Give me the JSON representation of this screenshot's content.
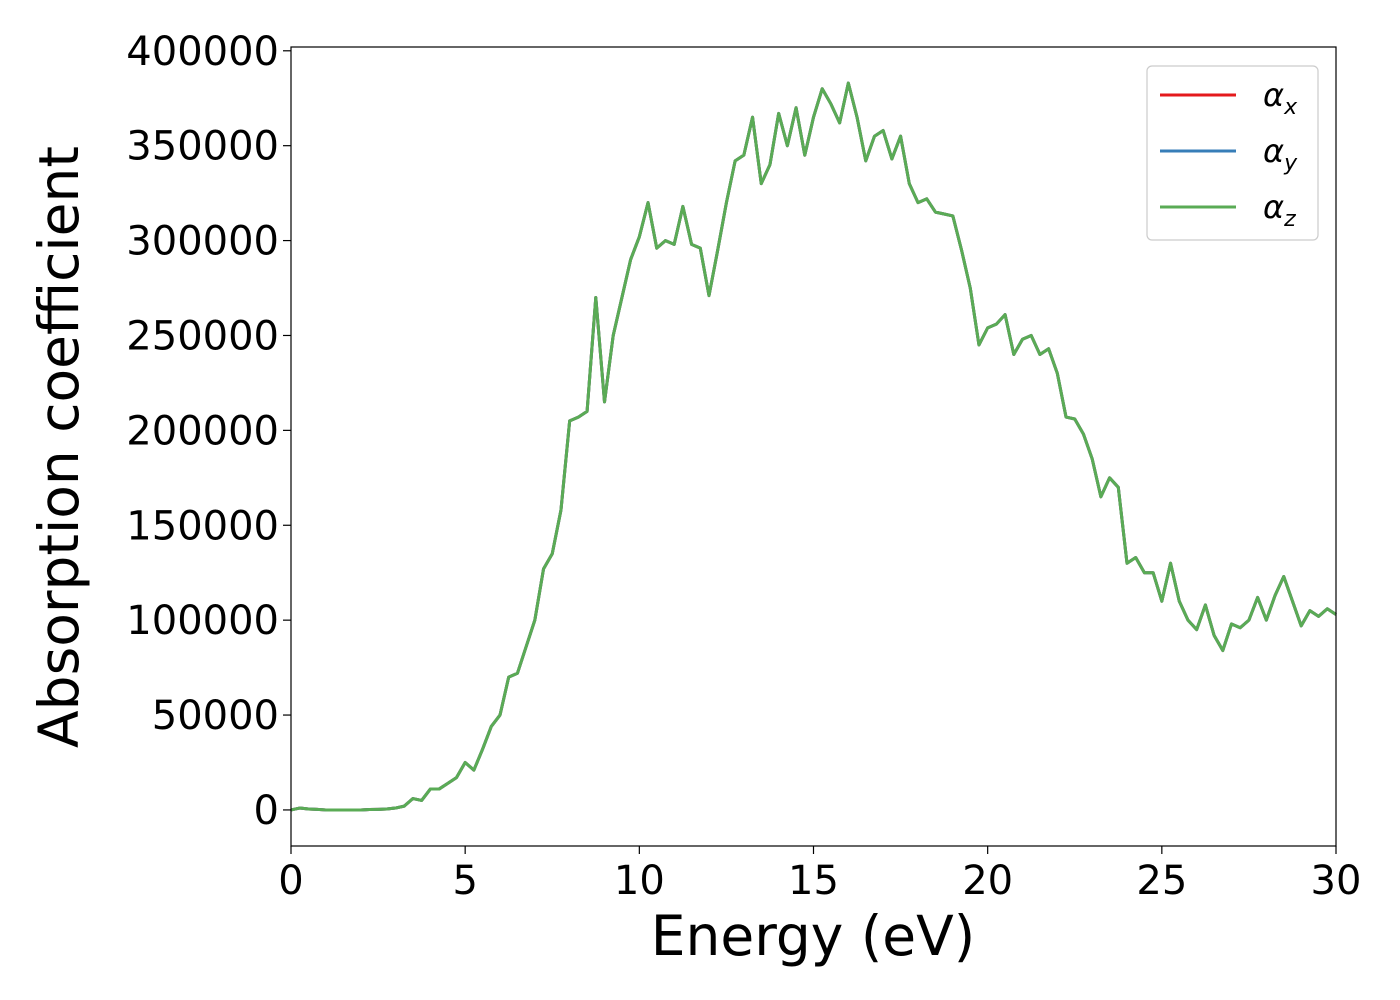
{
  "chart_data": {
    "type": "line",
    "xlabel": "Energy (eV)",
    "ylabel": "Absorption coefficient",
    "x": [
      0,
      0.25,
      0.5,
      0.75,
      1,
      1.25,
      1.5,
      1.75,
      2,
      2.25,
      2.5,
      2.75,
      3,
      3.25,
      3.5,
      3.75,
      4,
      4.25,
      4.5,
      4.75,
      5,
      5.25,
      5.5,
      5.75,
      6,
      6.25,
      6.5,
      6.75,
      7,
      7.25,
      7.5,
      7.75,
      8,
      8.25,
      8.5,
      8.75,
      9,
      9.25,
      9.5,
      9.75,
      10,
      10.25,
      10.5,
      10.75,
      11,
      11.25,
      11.5,
      11.75,
      12,
      12.25,
      12.5,
      12.75,
      13,
      13.25,
      13.5,
      13.75,
      14,
      14.25,
      14.5,
      14.75,
      15,
      15.25,
      15.5,
      15.75,
      16,
      16.25,
      16.5,
      16.75,
      17,
      17.25,
      17.5,
      17.75,
      18,
      18.25,
      18.5,
      18.75,
      19,
      19.25,
      19.5,
      19.75,
      20,
      20.25,
      20.5,
      20.75,
      21,
      21.25,
      21.5,
      21.75,
      22,
      22.25,
      22.5,
      22.75,
      23,
      23.25,
      23.5,
      23.75,
      24,
      24.25,
      24.5,
      24.75,
      25,
      25.25,
      25.5,
      25.75,
      26,
      26.25,
      26.5,
      26.75,
      27,
      27.25,
      27.5,
      27.75,
      28,
      28.25,
      28.5,
      28.75,
      29,
      29.25,
      29.5,
      29.75,
      30
    ],
    "series": [
      {
        "name": "αx",
        "color": "#e41a1c",
        "values": [
          0,
          1000,
          500,
          300,
          0,
          0,
          0,
          0,
          0,
          200,
          300,
          500,
          1000,
          2000,
          6000,
          5000,
          11000,
          11000,
          14000,
          17000,
          25000,
          21000,
          32000,
          44000,
          50000,
          70000,
          72000,
          86000,
          100000,
          127000,
          135000,
          158000,
          205000,
          207000,
          210000,
          270000,
          215000,
          250000,
          270000,
          290000,
          302000,
          320000,
          296000,
          300000,
          298000,
          318000,
          298000,
          296000,
          271000,
          295000,
          320000,
          342000,
          345000,
          365000,
          330000,
          340000,
          367000,
          350000,
          370000,
          345000,
          365000,
          380000,
          372000,
          362000,
          383000,
          365000,
          342000,
          355000,
          358000,
          343000,
          355000,
          330000,
          320000,
          322000,
          315000,
          314000,
          313000,
          295000,
          275000,
          245000,
          254000,
          256000,
          261000,
          240000,
          248000,
          250000,
          240000,
          243000,
          230000,
          207000,
          206000,
          198000,
          185000,
          165000,
          175000,
          170000,
          130000,
          133000,
          125000,
          125000,
          110000,
          130000,
          110000,
          100000,
          95000,
          108000,
          92000,
          84000,
          98000,
          96000,
          100000,
          112000,
          100000,
          113000,
          123000,
          110000,
          97000,
          105000,
          102000,
          106000,
          103000
        ]
      },
      {
        "name": "αy",
        "color": "#377eb8",
        "values": [
          0,
          1000,
          500,
          300,
          0,
          0,
          0,
          0,
          0,
          200,
          300,
          500,
          1000,
          2000,
          6000,
          5000,
          11000,
          11000,
          14000,
          17000,
          25000,
          21000,
          32000,
          44000,
          50000,
          70000,
          72000,
          86000,
          100000,
          127000,
          135000,
          158000,
          205000,
          207000,
          210000,
          270000,
          215000,
          250000,
          270000,
          290000,
          302000,
          320000,
          296000,
          300000,
          298000,
          318000,
          298000,
          296000,
          271000,
          295000,
          320000,
          342000,
          345000,
          365000,
          330000,
          340000,
          367000,
          350000,
          370000,
          345000,
          365000,
          380000,
          372000,
          362000,
          383000,
          365000,
          342000,
          355000,
          358000,
          343000,
          355000,
          330000,
          320000,
          322000,
          315000,
          314000,
          313000,
          295000,
          275000,
          245000,
          254000,
          256000,
          261000,
          240000,
          248000,
          250000,
          240000,
          243000,
          230000,
          207000,
          206000,
          198000,
          185000,
          165000,
          175000,
          170000,
          130000,
          133000,
          125000,
          125000,
          110000,
          130000,
          110000,
          100000,
          95000,
          108000,
          92000,
          84000,
          98000,
          96000,
          100000,
          112000,
          100000,
          113000,
          123000,
          110000,
          97000,
          105000,
          102000,
          106000,
          103000
        ]
      },
      {
        "name": "αz",
        "color": "#5aab55",
        "values": [
          0,
          1000,
          500,
          300,
          0,
          0,
          0,
          0,
          0,
          200,
          300,
          500,
          1000,
          2000,
          6000,
          5000,
          11000,
          11000,
          14000,
          17000,
          25000,
          21000,
          32000,
          44000,
          50000,
          70000,
          72000,
          86000,
          100000,
          127000,
          135000,
          158000,
          205000,
          207000,
          210000,
          270000,
          215000,
          250000,
          270000,
          290000,
          302000,
          320000,
          296000,
          300000,
          298000,
          318000,
          298000,
          296000,
          271000,
          295000,
          320000,
          342000,
          345000,
          365000,
          330000,
          340000,
          367000,
          350000,
          370000,
          345000,
          365000,
          380000,
          372000,
          362000,
          383000,
          365000,
          342000,
          355000,
          358000,
          343000,
          355000,
          330000,
          320000,
          322000,
          315000,
          314000,
          313000,
          295000,
          275000,
          245000,
          254000,
          256000,
          261000,
          240000,
          248000,
          250000,
          240000,
          243000,
          230000,
          207000,
          206000,
          198000,
          185000,
          165000,
          175000,
          170000,
          130000,
          133000,
          125000,
          125000,
          110000,
          130000,
          110000,
          100000,
          95000,
          108000,
          92000,
          84000,
          98000,
          96000,
          100000,
          112000,
          100000,
          113000,
          123000,
          110000,
          97000,
          105000,
          102000,
          106000,
          103000
        ]
      }
    ],
    "xlim": [
      0,
      30
    ],
    "xticks": [
      0,
      5,
      10,
      15,
      20,
      25,
      30
    ],
    "ylim": [
      -19000,
      402000
    ],
    "yticks": [
      0,
      50000,
      100000,
      150000,
      200000,
      250000,
      300000,
      350000,
      400000
    ],
    "grid": false,
    "legend": "upper right"
  }
}
